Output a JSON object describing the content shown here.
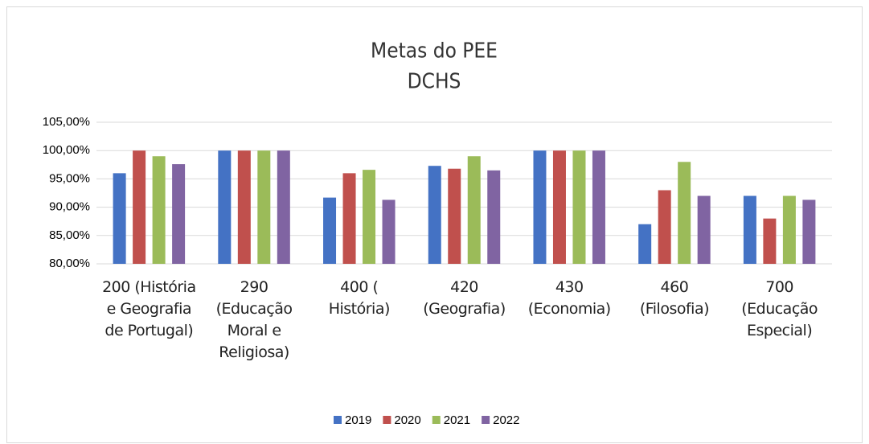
{
  "chart_data": {
    "type": "bar",
    "title": "Metas do PEE",
    "subtitle": "DCHS",
    "categories": [
      "200 (História e Geografia de Portugal)",
      "290 (Educação Moral e Religiosa)",
      "400 ( História)",
      "420 (Geografia)",
      "430 (Economia)",
      "460 (Filosofia)",
      "700 (Educação Especial)"
    ],
    "series": [
      {
        "name": "2019",
        "color": "#4472c4",
        "values": [
          96,
          100,
          91.7,
          97.3,
          100,
          87,
          92
        ]
      },
      {
        "name": "2020",
        "color": "#c0504d",
        "values": [
          100,
          100,
          96,
          96.8,
          100,
          93,
          88
        ]
      },
      {
        "name": "2021",
        "color": "#9bbb59",
        "values": [
          99,
          100,
          96.6,
          99,
          100,
          98,
          92
        ]
      },
      {
        "name": "2022",
        "color": "#8064a2",
        "values": [
          97.6,
          100,
          91.3,
          96.5,
          100,
          92,
          91.3
        ]
      }
    ],
    "ylim": [
      80,
      105
    ],
    "yticks": [
      {
        "value": 80,
        "label": "80,00%"
      },
      {
        "value": 85,
        "label": "85,00%"
      },
      {
        "value": 90,
        "label": "90,00%"
      },
      {
        "value": 95,
        "label": "95,00%"
      },
      {
        "value": 100,
        "label": "100,00%"
      },
      {
        "value": 105,
        "label": "105,00%"
      }
    ],
    "grid": true,
    "legend": "bottom"
  }
}
